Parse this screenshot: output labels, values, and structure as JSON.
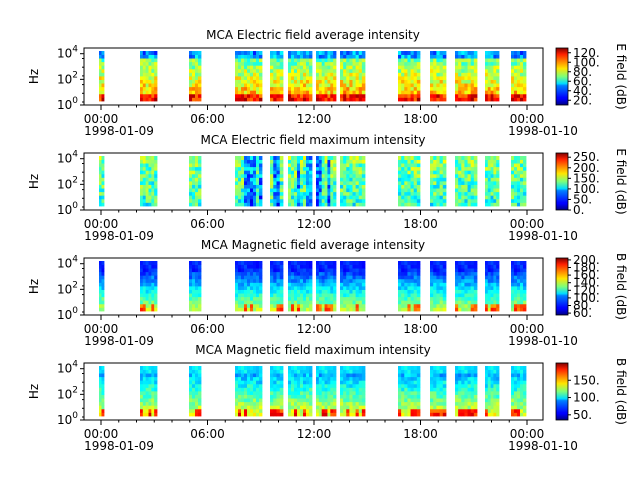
{
  "figure": {
    "time_ticks": [
      "00:00",
      "06:00",
      "12:00",
      "18:00",
      "00:00"
    ],
    "date_ticks": [
      "1998-01-09",
      "1998-01-10"
    ]
  },
  "chart_data": [
    {
      "type": "heatmap",
      "title": "MCA  Electric field average intensity",
      "xlabel": "",
      "ylabel": "Hz",
      "colorbar_label": "E field (dB)",
      "colorbar_ticks": [
        "20.",
        "40.",
        "60.",
        "80.",
        "100.",
        "120."
      ],
      "colorbar_range": [
        10,
        130
      ],
      "y_ticks": [
        "10^0",
        "10^2",
        "10^4"
      ],
      "x_range": [
        "1998-01-09 00:00",
        "1998-01-10 00:00"
      ],
      "y_log_range": [
        1,
        30000
      ],
      "data_intervals_hours": [
        [
          0.0,
          0.1
        ],
        [
          1.1,
          1.6
        ],
        [
          2.5,
          3.0
        ],
        [
          3.8,
          4.3
        ],
        [
          4.9,
          5.3
        ],
        [
          5.9,
          6.2
        ],
        [
          6.6,
          7.1
        ],
        [
          7.3,
          7.9
        ],
        [
          8.1,
          8.6
        ],
        [
          8.9,
          9.5
        ],
        [
          9.7,
          10.2
        ],
        [
          10.3,
          10.6
        ],
        [
          11.1,
          11.7
        ]
      ],
      "colorscale": "jet"
    },
    {
      "type": "heatmap",
      "title": "MCA  Electric field maximum intensity",
      "xlabel": "",
      "ylabel": "Hz",
      "colorbar_label": "E field (dB)",
      "colorbar_ticks": [
        "0.",
        "50.",
        "100.",
        "150.",
        "200.",
        "250."
      ],
      "colorbar_range": [
        0,
        270
      ],
      "y_ticks": [
        "10^0",
        "10^2",
        "10^4"
      ],
      "x_range": [
        "1998-01-09 00:00",
        "1998-01-10 00:00"
      ],
      "y_log_range": [
        1,
        30000
      ],
      "colorscale": "jet"
    },
    {
      "type": "heatmap",
      "title": "MCA  Magnetic field average intensity",
      "xlabel": "",
      "ylabel": "Hz",
      "colorbar_label": "B field (dB)",
      "colorbar_ticks": [
        "60.",
        "80.",
        "100.",
        "120.",
        "140.",
        "160.",
        "180.",
        "200."
      ],
      "colorbar_range": [
        55,
        205
      ],
      "y_ticks": [
        "10^0",
        "10^2",
        "10^4"
      ],
      "x_range": [
        "1998-01-09 00:00",
        "1998-01-10 00:00"
      ],
      "y_log_range": [
        1,
        30000
      ],
      "colorscale": "jet"
    },
    {
      "type": "heatmap",
      "title": "MCA  Magnetic field maximum intensity",
      "xlabel": "",
      "ylabel": "Hz",
      "colorbar_label": "B field (dB)",
      "colorbar_ticks": [
        "50.",
        "100.",
        "150."
      ],
      "colorbar_range": [
        35,
        200
      ],
      "y_ticks": [
        "10^0",
        "10^2",
        "10^4"
      ],
      "x_range": [
        "1998-01-09 00:00",
        "1998-01-10 00:00"
      ],
      "y_log_range": [
        1,
        30000
      ],
      "colorscale": "jet"
    }
  ]
}
